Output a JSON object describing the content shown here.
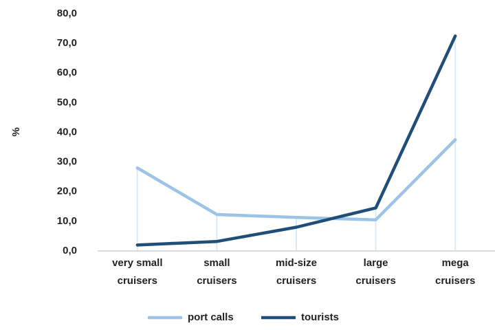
{
  "chart_data": {
    "type": "line",
    "y_label": "%",
    "categories": [
      "very small cruisers",
      "small cruisers",
      "mid-size cruisers",
      "large cruisers",
      "mega cruisers"
    ],
    "series": [
      {
        "name": "port calls",
        "color": "#9dc3e6",
        "values": [
          28.0,
          12.3,
          11.3,
          10.5,
          37.5
        ]
      },
      {
        "name": "tourists",
        "color": "#1f4e79",
        "values": [
          2.0,
          3.2,
          8.0,
          14.5,
          72.5
        ]
      }
    ],
    "ylim": [
      0,
      80
    ],
    "yticks": [
      {
        "value": 0,
        "label": "0,0"
      },
      {
        "value": 10,
        "label": "10,0"
      },
      {
        "value": 20,
        "label": "20,0"
      },
      {
        "value": 30,
        "label": "30,0"
      },
      {
        "value": 40,
        "label": "40,0"
      },
      {
        "value": 50,
        "label": "50,0"
      },
      {
        "value": 60,
        "label": "60,0"
      },
      {
        "value": 70,
        "label": "70,0"
      },
      {
        "value": 80,
        "label": "80,0"
      }
    ],
    "grid": false,
    "legend": "bottom"
  }
}
